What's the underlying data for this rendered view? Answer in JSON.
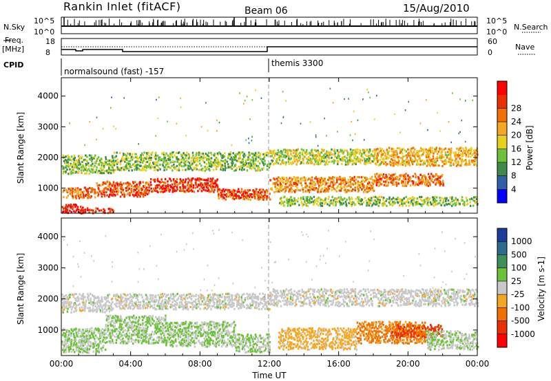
{
  "header": {
    "title": "Rankin Inlet (fitACF)",
    "beam": "Beam 06",
    "date": "15/Aug/2010"
  },
  "top_panels": {
    "nsky_label": "N.Sky",
    "nsearch_label": "N.Search",
    "nsky_ticks": [
      "10^5",
      "10^0"
    ],
    "nsearch_ticks": [
      "10^5",
      "10^0"
    ],
    "freq_label": "Freq.",
    "freq_unit": "[MHz]",
    "freq_ticks": [
      "18",
      "8"
    ],
    "nave_label": "Nave",
    "nave_ticks": [
      "60",
      "0"
    ],
    "cpid_label": "CPID",
    "cpid_segments": [
      {
        "label": "normalsound (fast) -157",
        "start_hour": 0
      },
      {
        "label": "themis 3300",
        "start_hour": 12
      }
    ]
  },
  "power_colorbar": {
    "label": "Power [dB]",
    "ticks": [
      "4",
      "8",
      "12",
      "16",
      "20",
      "24",
      "28"
    ],
    "colors": [
      "#0000ff",
      "#2f60a8",
      "#3d8a4a",
      "#6cc23a",
      "#e8d020",
      "#f5a623",
      "#f07000",
      "#e83000",
      "#ff0000"
    ]
  },
  "velocity_colorbar": {
    "label": "Velocity [m s-1]",
    "ticks": [
      "1000",
      "500",
      "100",
      "25",
      "-25",
      "-100",
      "-500",
      "-1000"
    ],
    "colors": [
      "#1e3c9c",
      "#2f6b8e",
      "#3f9058",
      "#6cc23a",
      "#c8c8c8",
      "#f5a623",
      "#f07000",
      "#e83000",
      "#ff0000"
    ]
  },
  "chart_data": [
    {
      "type": "heatmap",
      "title": "Power [dB]",
      "xlabel": "",
      "ylabel": "Slant Range [km]",
      "x_unit": "hours UT",
      "xlim": [
        0,
        24
      ],
      "ylim": [
        180,
        4600
      ],
      "yticks": [
        "1000",
        "2000",
        "3000",
        "4000"
      ],
      "xticks": [
        "00:00",
        "04:00",
        "08:00",
        "12:00",
        "16:00",
        "20:00",
        "00:00"
      ],
      "colorscale_range": [
        0,
        30
      ],
      "scatter_regions": [
        {
          "t0": 0.0,
          "t1": 1.2,
          "r0": 200,
          "r1": 500,
          "value": 28
        },
        {
          "t0": 1.0,
          "t1": 3.0,
          "r0": 200,
          "r1": 380,
          "value": 26
        },
        {
          "t0": 0.0,
          "t1": 2.0,
          "r0": 700,
          "r1": 1050,
          "value": 22
        },
        {
          "t0": 2.0,
          "t1": 5.0,
          "r0": 750,
          "r1": 1250,
          "value": 24
        },
        {
          "t0": 5.0,
          "t1": 9.0,
          "r0": 900,
          "r1": 1350,
          "value": 26
        },
        {
          "t0": 9.0,
          "t1": 12.0,
          "r0": 650,
          "r1": 1000,
          "value": 24
        },
        {
          "t0": 0.0,
          "t1": 3.0,
          "r0": 1500,
          "r1": 2100,
          "value": 12
        },
        {
          "t0": 3.0,
          "t1": 12.0,
          "r0": 1600,
          "r1": 2200,
          "value": 12
        },
        {
          "t0": 12.0,
          "t1": 18.0,
          "r0": 1800,
          "r1": 2300,
          "value": 14
        },
        {
          "t0": 18.0,
          "t1": 24.0,
          "r0": 1750,
          "r1": 2350,
          "value": 18
        },
        {
          "t0": 12.0,
          "t1": 18.0,
          "r0": 900,
          "r1": 1400,
          "value": 20
        },
        {
          "t0": 18.0,
          "t1": 22.0,
          "r0": 1100,
          "r1": 1500,
          "value": 22
        },
        {
          "t0": 12.5,
          "t1": 24.0,
          "r0": 450,
          "r1": 750,
          "value": 12
        }
      ]
    },
    {
      "type": "heatmap",
      "title": "Velocity [m s-1]",
      "xlabel": "Time UT",
      "ylabel": "Slant Range [km]",
      "x_unit": "hours UT",
      "xlim": [
        0,
        24
      ],
      "ylim": [
        180,
        4600
      ],
      "yticks": [
        "1000",
        "2000",
        "3000",
        "4000"
      ],
      "xticks": [
        "00:00",
        "04:00",
        "08:00",
        "12:00",
        "16:00",
        "20:00",
        "00:00"
      ],
      "colorscale_range": [
        -1000,
        1000
      ],
      "scatter_regions": [
        {
          "t0": 0.0,
          "t1": 2.5,
          "r0": 300,
          "r1": 1100,
          "value": 120
        },
        {
          "t0": 2.5,
          "t1": 6.0,
          "r0": 600,
          "r1": 1500,
          "value": 150
        },
        {
          "t0": 6.0,
          "t1": 10.0,
          "r0": 500,
          "r1": 1300,
          "value": 130
        },
        {
          "t0": 10.0,
          "t1": 12.0,
          "r0": 300,
          "r1": 900,
          "value": 110
        },
        {
          "t0": 0.0,
          "t1": 3.0,
          "r0": 1600,
          "r1": 2200,
          "value": 0
        },
        {
          "t0": 3.0,
          "t1": 12.0,
          "r0": 1700,
          "r1": 2200,
          "value": 0
        },
        {
          "t0": 12.0,
          "t1": 24.0,
          "r0": 1800,
          "r1": 2350,
          "value": 0
        },
        {
          "t0": 12.5,
          "t1": 17.0,
          "r0": 400,
          "r1": 1100,
          "value": -200
        },
        {
          "t0": 17.0,
          "t1": 21.0,
          "r0": 600,
          "r1": 1300,
          "value": -400
        },
        {
          "t0": 19.0,
          "t1": 22.0,
          "r0": 800,
          "r1": 1200,
          "value": -600
        },
        {
          "t0": 21.0,
          "t1": 24.0,
          "r0": 400,
          "r1": 1000,
          "value": 100
        }
      ]
    }
  ]
}
